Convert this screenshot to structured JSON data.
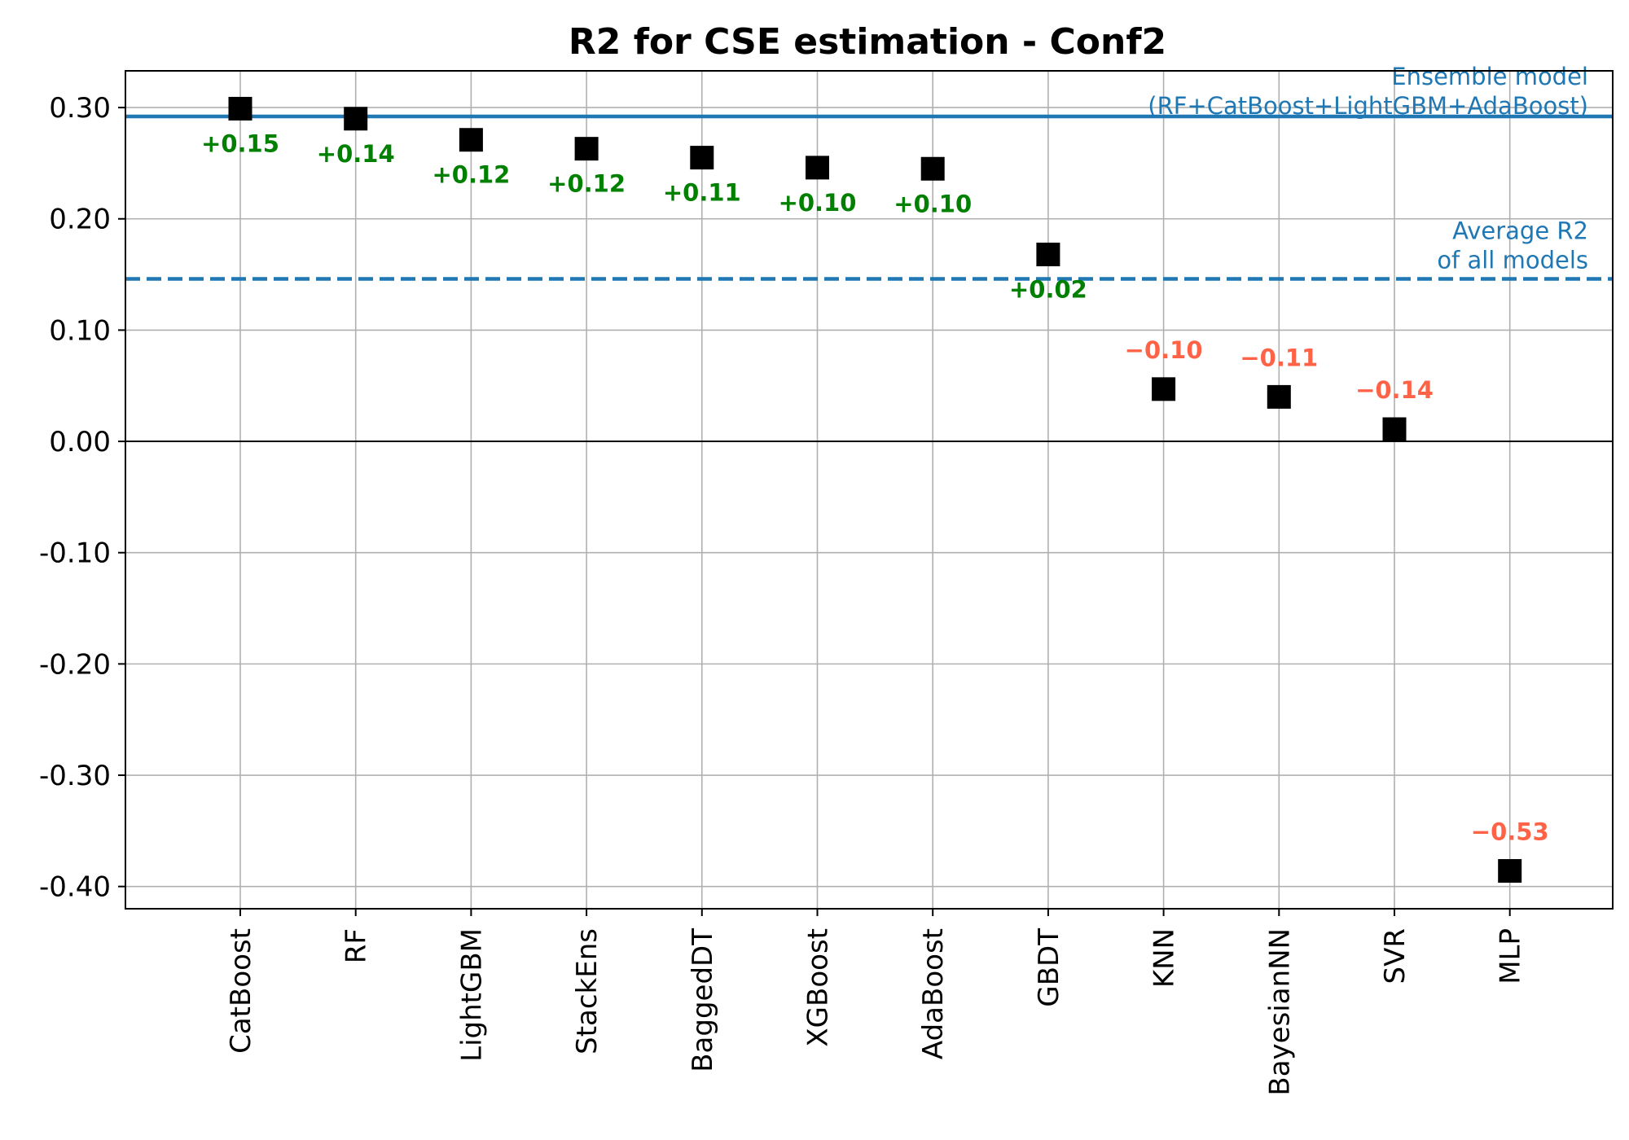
{
  "chart_data": {
    "type": "scatter",
    "title": "R2 for CSE estimation - Conf2",
    "xlabel": "",
    "ylabel": "",
    "ylim": [
      -0.42,
      0.333
    ],
    "yticks": [
      0.3,
      0.2,
      0.1,
      0.0,
      -0.1,
      -0.2,
      -0.3,
      -0.4
    ],
    "ytick_labels": [
      "0.30",
      "0.20",
      "0.10",
      "0.00",
      "-0.10",
      "-0.20",
      "-0.30",
      "-0.40"
    ],
    "grid": true,
    "marker": "square",
    "marker_color": "#000000",
    "categories": [
      "CatBoost",
      "RF",
      "LightGBM",
      "StackEns",
      "BaggedDT",
      "XGBoost",
      "AdaBoost",
      "GBDT",
      "KNN",
      "BayesianNN",
      "SVR",
      "MLP"
    ],
    "values": [
      0.299,
      0.29,
      0.271,
      0.263,
      0.255,
      0.246,
      0.245,
      0.168,
      0.047,
      0.04,
      0.011,
      -0.386
    ],
    "annotations": [
      "+0.15",
      "+0.14",
      "+0.12",
      "+0.12",
      "+0.11",
      "+0.10",
      "+0.10",
      "+0.02",
      "−0.10",
      "−0.11",
      "−0.14",
      "−0.53"
    ],
    "positive_color": "#008000",
    "negative_color": "#ff6347",
    "reference_lines": [
      {
        "value": 0.292,
        "style": "solid",
        "color": "#1f77b4",
        "label_lines": [
          "Ensemble model",
          "(RF+CatBoost+LightGBM+AdaBoost)"
        ]
      },
      {
        "value": 0.146,
        "style": "dashed",
        "color": "#1f77b4",
        "label_lines": [
          "Average R2",
          "of all models"
        ]
      },
      {
        "value": 0.0,
        "style": "solid",
        "color": "#000000",
        "label_lines": []
      }
    ]
  }
}
